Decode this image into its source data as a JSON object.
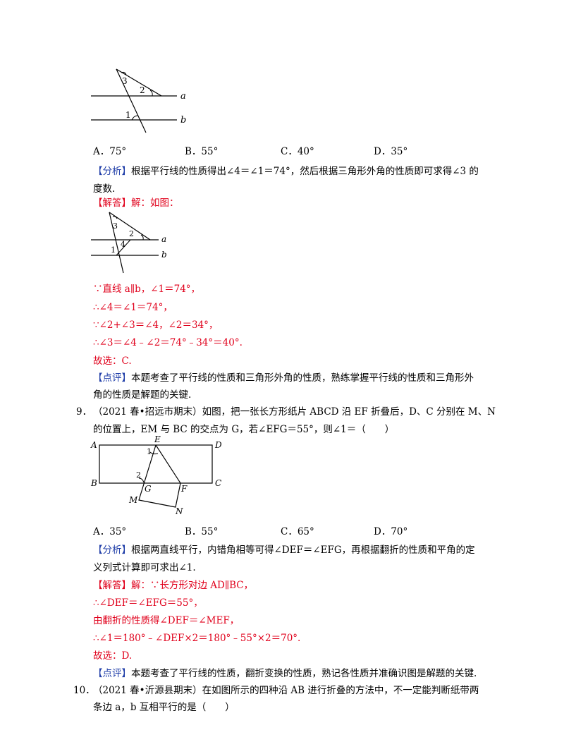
{
  "fig_q8": {
    "l3": "3",
    "l2": "2",
    "l1": "1",
    "la": "a",
    "lb": "b"
  },
  "q8_options": [
    "A．75°",
    "B．55°",
    "C．40°",
    "D．35°"
  ],
  "q8_analysis": {
    "tag": "【分析】",
    "line1": "根据平行线的性质得出∠4＝∠1＝74°，然后根据三角形外角的性质即可求得∠3 的",
    "line2": "度数."
  },
  "q8_solution_tag": "【解答】",
  "q8_solution_intro": "解：如图：",
  "fig_q8b": {
    "l3": "3",
    "l2": "2",
    "l1": "1",
    "l4": "4",
    "la": "a",
    "lb": "b"
  },
  "q8_steps": [
    "∵直线 a∥b，∠1＝74°，",
    "∴∠4＝∠1＝74°，",
    "∵∠2+∠3＝∠4，∠2＝34°，",
    "∴∠3＝∠4﹣∠2＝74°﹣34°＝40°.",
    "故选：C."
  ],
  "q8_comment": {
    "tag": "【点评】",
    "line1": "本题考查了平行线的性质和三角形外角的性质，熟练掌握平行线的性质和三角形外",
    "line2": "角的性质是解题的关键."
  },
  "q9": {
    "number": "9．",
    "line1": "（2021 春•招远市期末）如图，把一张长方形纸片 ABCD 沿 EF 折叠后，D、C 分别在 M、N",
    "line2": "的位置上，EM 与 BC 的交点为 G，若∠EFG＝55°，则∠1＝（　　）"
  },
  "fig_q9": {
    "A": "A",
    "B": "B",
    "C": "C",
    "D": "D",
    "E": "E",
    "F": "F",
    "G": "G",
    "M": "M",
    "N": "N",
    "l1": "1",
    "l2": "2"
  },
  "q9_options": [
    "A．35°",
    "B．55°",
    "C．65°",
    "D．70°"
  ],
  "q9_analysis": {
    "tag": "【分析】",
    "line1": "根据两直线平行，内错角相等可得∠DEF＝∠EFG，再根据翻折的性质和平角的定",
    "line2": "义列式计算即可求出∠1."
  },
  "q9_solution_tag": "【解答】",
  "q9_solution_intro": "解：∵长方形对边 AD∥BC，",
  "q9_steps": [
    "∴∠DEF＝∠EFG＝55°，",
    "由翻折的性质得∠DEF＝∠MEF，",
    "∴∠1＝180°﹣∠DEF×2＝180°﹣55°×2＝70°.",
    "故选：D."
  ],
  "q9_comment": {
    "tag": "【点评】",
    "line1": "本题考查了平行线的性质，翻折变换的性质，熟记各性质并准确识图是解题的关键."
  },
  "q10": {
    "number": "10．",
    "line1": "（2021 春•沂源县期末）在如图所示的四种沿 AB 进行折叠的方法中，不一定能判断纸带两",
    "line2": "条边 a，b 互相平行的是（　　）"
  }
}
